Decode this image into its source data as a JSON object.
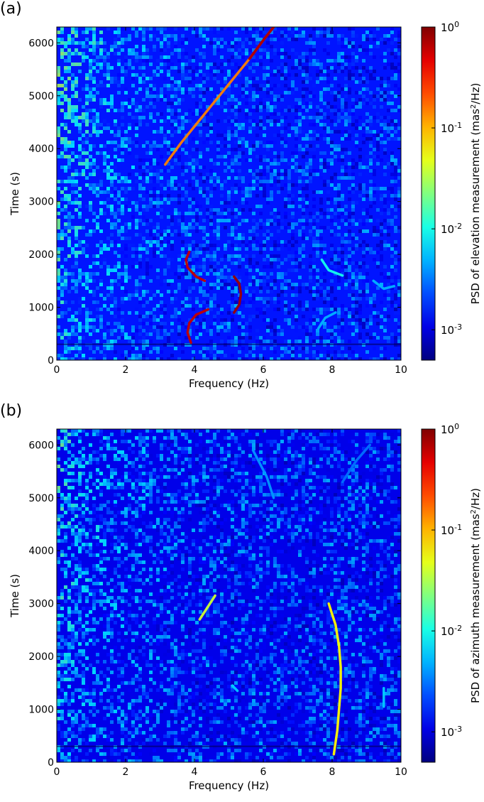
{
  "chart_data": [
    {
      "type": "heatmap",
      "panel_label": "(a)",
      "xlabel": "Frequency (Hz)",
      "ylabel": "Time (s)",
      "xlim": [
        0,
        10
      ],
      "ylim": [
        0,
        6300
      ],
      "xticks": [
        "0",
        "2",
        "4",
        "6",
        "8",
        "10"
      ],
      "yticks": [
        "0",
        "1000",
        "2000",
        "3000",
        "4000",
        "5000",
        "6000"
      ],
      "colorbar": {
        "label_prefix": "PSD of elevation measurement (mas",
        "label_sup": "2",
        "label_suffix": "/Hz)",
        "scale": "log",
        "range": [
          0.0005,
          1
        ],
        "ticks": [
          {
            "value": 1,
            "base": "10",
            "exp": "0"
          },
          {
            "value": 0.1,
            "base": "10",
            "exp": "-1"
          },
          {
            "value": 0.01,
            "base": "10",
            "exp": "-2"
          },
          {
            "value": 0.001,
            "base": "10",
            "exp": "-3"
          }
        ],
        "colormap": "jet"
      },
      "background_level": 0.0015,
      "features": [
        {
          "name": "rising chirp",
          "points": [
            [
              3.15,
              3700
            ],
            [
              3.6,
              4100
            ],
            [
              4.1,
              4500
            ],
            [
              4.6,
              4900
            ],
            [
              5.1,
              5300
            ],
            [
              5.6,
              5700
            ],
            [
              6.0,
              6050
            ],
            [
              6.3,
              6300
            ]
          ],
          "level": 0.15,
          "peak_level": 0.7
        },
        {
          "name": "upper arc near 4 Hz",
          "points": [
            [
              3.85,
              2050
            ],
            [
              3.75,
              1900
            ],
            [
              3.8,
              1750
            ],
            [
              4.05,
              1580
            ],
            [
              4.3,
              1500
            ]
          ],
          "level": 0.6
        },
        {
          "name": "lower arc near 4 Hz",
          "points": [
            [
              3.9,
              330
            ],
            [
              3.8,
              520
            ],
            [
              3.85,
              700
            ],
            [
              4.05,
              860
            ],
            [
              4.4,
              960
            ]
          ],
          "level": 0.6
        },
        {
          "name": "arc near 5.2 Hz",
          "points": [
            [
              5.15,
              1580
            ],
            [
              5.3,
              1450
            ],
            [
              5.35,
              1250
            ],
            [
              5.3,
              1050
            ],
            [
              5.15,
              900
            ]
          ],
          "level": 0.8
        },
        {
          "name": "faint arc near 7.8 Hz",
          "points": [
            [
              7.7,
              1900
            ],
            [
              7.9,
              1700
            ],
            [
              8.3,
              1600
            ]
          ],
          "level": 0.01
        },
        {
          "name": "faint arc near 7.8 Hz lower",
          "points": [
            [
              7.6,
              600
            ],
            [
              7.8,
              800
            ],
            [
              8.1,
              900
            ]
          ],
          "level": 0.005
        },
        {
          "name": "faint feature near 9.5 Hz",
          "points": [
            [
              9.2,
              1500
            ],
            [
              9.5,
              1350
            ],
            [
              9.8,
              1400
            ]
          ],
          "level": 0.005
        }
      ]
    },
    {
      "type": "heatmap",
      "panel_label": "(b)",
      "xlabel": "Frequency (Hz)",
      "ylabel": "Time (s)",
      "xlim": [
        0,
        10
      ],
      "ylim": [
        0,
        6300
      ],
      "xticks": [
        "0",
        "2",
        "4",
        "6",
        "8",
        "10"
      ],
      "yticks": [
        "0",
        "1000",
        "2000",
        "3000",
        "4000",
        "5000",
        "6000"
      ],
      "colorbar": {
        "label_prefix": "PSD of azimuth measurement (mas",
        "label_sup": "2",
        "label_suffix": "/Hz)",
        "scale": "log",
        "range": [
          0.0005,
          1
        ],
        "ticks": [
          {
            "value": 1,
            "base": "10",
            "exp": "0"
          },
          {
            "value": 0.1,
            "base": "10",
            "exp": "-1"
          },
          {
            "value": 0.01,
            "base": "10",
            "exp": "-2"
          },
          {
            "value": 0.001,
            "base": "10",
            "exp": "-3"
          }
        ],
        "colormap": "jet"
      },
      "background_level": 0.0011,
      "features": [
        {
          "name": "arc near 8 Hz",
          "points": [
            [
              7.9,
              3000
            ],
            [
              8.1,
              2600
            ],
            [
              8.2,
              2200
            ],
            [
              8.25,
              1800
            ],
            [
              8.25,
              1400
            ],
            [
              8.2,
              1000
            ],
            [
              8.15,
              600
            ],
            [
              8.05,
              150
            ]
          ],
          "level": 0.06
        },
        {
          "name": "short chirp near 4.3 Hz",
          "points": [
            [
              4.15,
              2700
            ],
            [
              4.4,
              2950
            ],
            [
              4.6,
              3150
            ]
          ],
          "level": 0.04
        },
        {
          "name": "faint diagonal",
          "points": [
            [
              5.7,
              5900
            ],
            [
              6.1,
              5400
            ],
            [
              6.3,
              5000
            ]
          ],
          "level": 0.004
        },
        {
          "name": "faint diagonal 2",
          "points": [
            [
              8.3,
              5300
            ],
            [
              8.7,
              5700
            ],
            [
              9.1,
              6000
            ]
          ],
          "level": 0.003
        },
        {
          "name": "faint feature near 5.2 Hz",
          "points": [
            [
              5.1,
              1450
            ],
            [
              5.25,
              1350
            ]
          ],
          "level": 0.006
        },
        {
          "name": "faint feature near 9.5 Hz",
          "points": [
            [
              9.5,
              1400
            ],
            [
              9.5,
              1050
            ]
          ],
          "level": 0.006
        }
      ]
    }
  ]
}
